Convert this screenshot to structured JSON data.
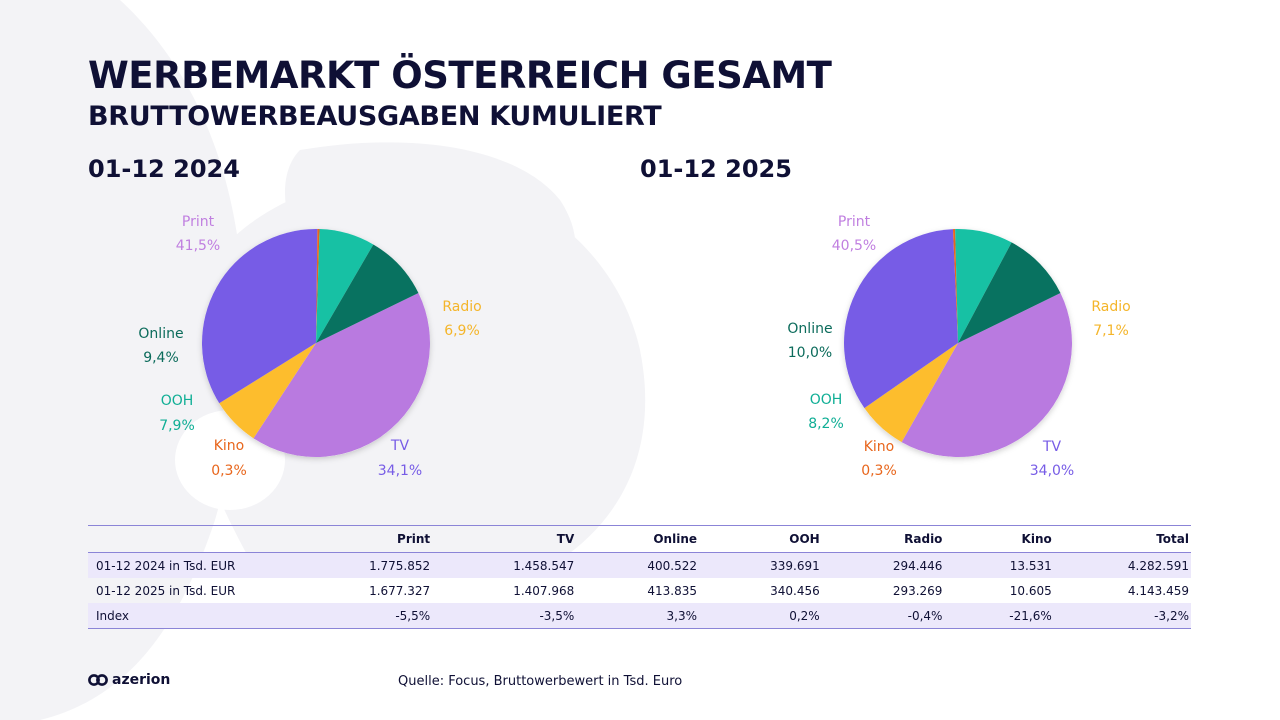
{
  "title": "WERBEMARKT ÖSTERREICH GESAMT",
  "subtitle": "BRUTTOWERBEAUSGABEN KUMULIERT",
  "colors": {
    "Print": "#b97ae0",
    "Radio": "#fdbd2d",
    "TV": "#775ce6",
    "Kino": "#e8661c",
    "OOH": "#17c1a4",
    "Online": "#087260",
    "kino_label": "#e8661c",
    "tv_label": "#775ce6",
    "ooh_label": "#0fae95",
    "radio_label": "#f4b52a",
    "print_label": "#c07fe0",
    "online_label": "#0b6b5b"
  },
  "chart_data": [
    {
      "type": "pie",
      "title": "01-12 2024",
      "categories": [
        "Print",
        "Radio",
        "TV",
        "Kino",
        "OOH",
        "Online"
      ],
      "values": [
        41.5,
        6.9,
        34.1,
        0.3,
        7.9,
        9.4
      ],
      "value_labels": [
        "41,5%",
        "6,9%",
        "34,1%",
        "0,3%",
        "7,9%",
        "9,4%"
      ]
    },
    {
      "type": "pie",
      "title": "01-12 2025",
      "categories": [
        "Print",
        "Radio",
        "TV",
        "Kino",
        "OOH",
        "Online"
      ],
      "values": [
        40.5,
        7.1,
        34.0,
        0.3,
        8.2,
        10.0
      ],
      "value_labels": [
        "40,5%",
        "7,1%",
        "34,0%",
        "0,3%",
        "8,2%",
        "10,0%"
      ]
    }
  ],
  "table": {
    "headers": [
      "",
      "Print",
      "TV",
      "Online",
      "OOH",
      "Radio",
      "Kino",
      "Total"
    ],
    "rows": [
      [
        "01-12 2024 in Tsd. EUR",
        "1.775.852",
        "1.458.547",
        "400.522",
        "339.691",
        "294.446",
        "13.531",
        "4.282.591"
      ],
      [
        "01-12 2025 in Tsd. EUR",
        "1.677.327",
        "1.407.968",
        "413.835",
        "340.456",
        "293.269",
        "10.605",
        "4.143.459"
      ],
      [
        "Index",
        "-5,5%",
        "-3,5%",
        "3,3%",
        "0,2%",
        "-0,4%",
        "-21,6%",
        "-3,2%"
      ]
    ]
  },
  "logo": {
    "text": "azerion"
  },
  "source": "Quelle: Focus, Bruttowerbewert in Tsd. Euro"
}
